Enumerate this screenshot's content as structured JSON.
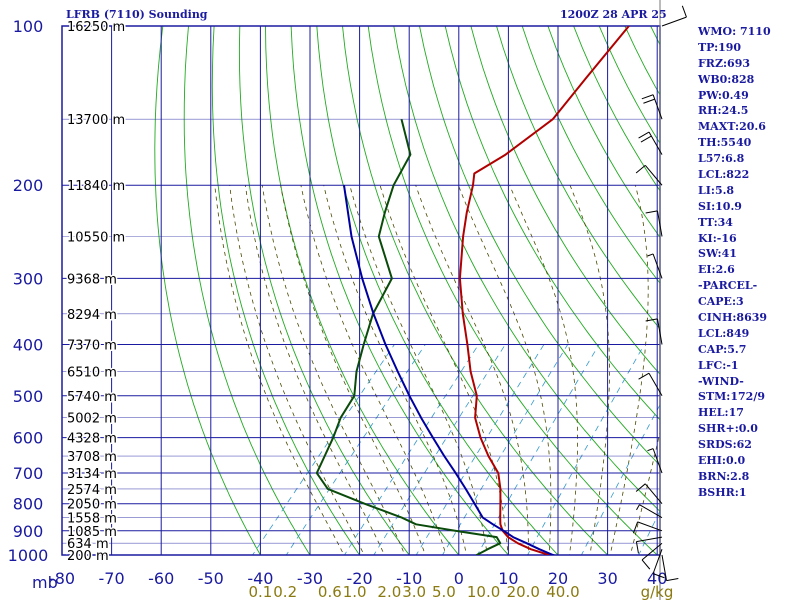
{
  "header": {
    "title": "LFRB (7110) Sounding",
    "datetime": "1200Z 28 APR 25"
  },
  "stats": [
    "WMO: 7110",
    "TP:190",
    "FRZ:693",
    "WB0:828",
    "PW:0.49",
    "RH:24.5",
    "MAXT:20.6",
    "TH:5540",
    "L57:6.8",
    "LCL:822",
    "LI:5.8",
    "SI:10.9",
    "TT:34",
    "KI:-16",
    "SW:41",
    "EI:2.6",
    "-PARCEL-",
    "CAPE:3",
    "CINH:8639",
    "LCL:849",
    "CAP:5.7",
    "LFC:-1",
    "-WIND-",
    "STM:172/9",
    "HEL:17",
    "SHR+:0.0",
    "SRDS:62",
    "EHI:0.0",
    "BRN:2.8",
    "BSHR:1"
  ],
  "colors": {
    "frame": "#1a1aa0",
    "grid": "#1a1aa0",
    "dry_adiabat": "#22aa22",
    "moist_adiabat": "#4a4a00",
    "mixing_ratio": "#3399cc",
    "temperature": "#b00000",
    "dewpoint": "#0a4a0a",
    "parcel": "#0000a0",
    "wind": "#000000",
    "mr_label": "#8a7a10"
  },
  "chart_data": {
    "type": "line",
    "diagram": "skew-T log-P",
    "pressure_axis": {
      "unit_label": "mb",
      "ticks": [
        100,
        200,
        300,
        400,
        500,
        600,
        700,
        800,
        900,
        1000
      ],
      "range": [
        100,
        1000
      ],
      "scale": "log"
    },
    "temperature_axis": {
      "ticks": [
        -80,
        -70,
        -60,
        -50,
        -40,
        -30,
        -20,
        -10,
        0,
        10,
        20,
        30,
        40
      ],
      "range": [
        -80,
        40
      ]
    },
    "mixing_ratio_labels": [
      {
        "label": "0.1",
        "t": -40
      },
      {
        "label": "0.2",
        "t": -35
      },
      {
        "label": "0.6",
        "t": -26
      },
      {
        "label": "1.0",
        "t": -21
      },
      {
        "label": "2.0",
        "t": -14
      },
      {
        "label": "3.0",
        "t": -9
      },
      {
        "label": "5.0",
        "t": -3
      },
      {
        "label": "10.0",
        "t": 5
      },
      {
        "label": "20.0",
        "t": 13
      },
      {
        "label": "40.0",
        "t": 21
      }
    ],
    "mixing_ratio_unit": "g/kg",
    "height_labels": [
      {
        "p": 100,
        "label": "16250 m"
      },
      {
        "p": 150,
        "label": "13700 m"
      },
      {
        "p": 200,
        "label": "11840 m"
      },
      {
        "p": 250,
        "label": "10550 m"
      },
      {
        "p": 300,
        "label": "9368 m"
      },
      {
        "p": 350,
        "label": "8294 m"
      },
      {
        "p": 400,
        "label": "7370 m"
      },
      {
        "p": 450,
        "label": "6510 m"
      },
      {
        "p": 500,
        "label": "5740 m"
      },
      {
        "p": 550,
        "label": "5002 m"
      },
      {
        "p": 600,
        "label": "4328 m"
      },
      {
        "p": 650,
        "label": "3708 m"
      },
      {
        "p": 700,
        "label": "3134 m"
      },
      {
        "p": 750,
        "label": "2574 m"
      },
      {
        "p": 800,
        "label": "2050 m"
      },
      {
        "p": 850,
        "label": "1558 m"
      },
      {
        "p": 900,
        "label": "1085 m"
      },
      {
        "p": 950,
        "label": "634 m"
      },
      {
        "p": 1000,
        "label": "200 m"
      }
    ],
    "series": [
      {
        "key": "temperature",
        "points": [
          [
            1009,
            20.6
          ],
          [
            1000,
            18.2
          ],
          [
            975,
            13.5
          ],
          [
            950,
            9.8
          ],
          [
            925,
            6.8
          ],
          [
            900,
            4.6
          ],
          [
            875,
            3.0
          ],
          [
            850,
            1.8
          ],
          [
            800,
            -0.6
          ],
          [
            750,
            -3.2
          ],
          [
            700,
            -6.4
          ],
          [
            650,
            -11.4
          ],
          [
            600,
            -16.2
          ],
          [
            550,
            -20.8
          ],
          [
            500,
            -24.3
          ],
          [
            450,
            -29.8
          ],
          [
            400,
            -35.2
          ],
          [
            350,
            -41.5
          ],
          [
            300,
            -48.3
          ],
          [
            250,
            -55.0
          ],
          [
            225,
            -58.5
          ],
          [
            200,
            -62.0
          ],
          [
            190,
            -63.8
          ],
          [
            175,
            -60.8
          ],
          [
            150,
            -57.5
          ],
          [
            125,
            -58.0
          ],
          [
            100,
            -58.5
          ]
        ]
      },
      {
        "key": "dewpoint",
        "points": [
          [
            1009,
            5.5
          ],
          [
            1000,
            3.6
          ],
          [
            975,
            4.8
          ],
          [
            950,
            6.3
          ],
          [
            925,
            4.5
          ],
          [
            900,
            -5.0
          ],
          [
            875,
            -14.0
          ],
          [
            850,
            -18.0
          ],
          [
            800,
            -28.0
          ],
          [
            750,
            -38.0
          ],
          [
            700,
            -43.0
          ],
          [
            650,
            -44.4
          ],
          [
            600,
            -45.9
          ],
          [
            550,
            -47.9
          ],
          [
            500,
            -49.0
          ],
          [
            450,
            -52.8
          ],
          [
            400,
            -56.1
          ],
          [
            350,
            -59.6
          ],
          [
            300,
            -62.0
          ],
          [
            250,
            -72.0
          ],
          [
            225,
            -75.0
          ],
          [
            200,
            -78.0
          ],
          [
            175,
            -80.0
          ],
          [
            150,
            -88.0
          ]
        ]
      },
      {
        "key": "parcel",
        "points": [
          [
            1009,
            20.6
          ],
          [
            1000,
            19.0
          ],
          [
            975,
            15.2
          ],
          [
            950,
            11.6
          ],
          [
            925,
            7.8
          ],
          [
            900,
            4.8
          ],
          [
            875,
            1.5
          ],
          [
            849,
            -1.8
          ],
          [
            800,
            -5.8
          ],
          [
            750,
            -10.2
          ],
          [
            700,
            -15.0
          ],
          [
            650,
            -20.3
          ],
          [
            600,
            -25.8
          ],
          [
            550,
            -31.7
          ],
          [
            500,
            -37.9
          ],
          [
            450,
            -44.5
          ],
          [
            400,
            -51.7
          ],
          [
            350,
            -59.5
          ],
          [
            300,
            -68.0
          ],
          [
            250,
            -77.5
          ],
          [
            200,
            -88.0
          ]
        ]
      }
    ],
    "wind_barbs": [
      {
        "p": 1000,
        "dir": 170,
        "kt": 10
      },
      {
        "p": 975,
        "dir": 200,
        "kt": 10
      },
      {
        "p": 950,
        "dir": 230,
        "kt": 10
      },
      {
        "p": 925,
        "dir": 260,
        "kt": 10
      },
      {
        "p": 900,
        "dir": 290,
        "kt": 10
      },
      {
        "p": 850,
        "dir": 300,
        "kt": 5
      },
      {
        "p": 800,
        "dir": 320,
        "kt": 10
      },
      {
        "p": 700,
        "dir": 340,
        "kt": 5
      },
      {
        "p": 500,
        "dir": 330,
        "kt": 10
      },
      {
        "p": 400,
        "dir": 350,
        "kt": 10
      },
      {
        "p": 300,
        "dir": 340,
        "kt": 5
      },
      {
        "p": 250,
        "dir": 350,
        "kt": 10
      },
      {
        "p": 200,
        "dir": 320,
        "kt": 10
      },
      {
        "p": 175,
        "dir": 330,
        "kt": 20
      },
      {
        "p": 150,
        "dir": 340,
        "kt": 20
      },
      {
        "p": 100,
        "dir": 70,
        "kt": 10
      }
    ]
  }
}
